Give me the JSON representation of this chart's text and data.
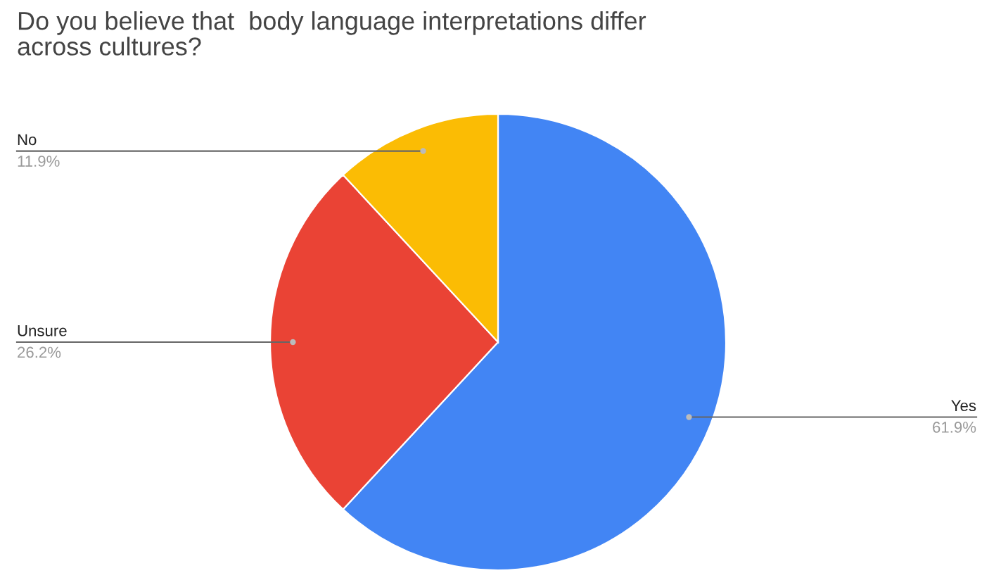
{
  "chart_data": {
    "type": "pie",
    "title": "Do you believe that  body language interpretations differ\nacross cultures?",
    "categories": [
      "Yes",
      "Unsure",
      "No"
    ],
    "values": [
      61.9,
      26.2,
      11.9
    ],
    "colors": [
      "#4285f4",
      "#ea4335",
      "#fbbc04"
    ],
    "value_labels": [
      "61.9%",
      "26.2%",
      "11.9%"
    ]
  }
}
